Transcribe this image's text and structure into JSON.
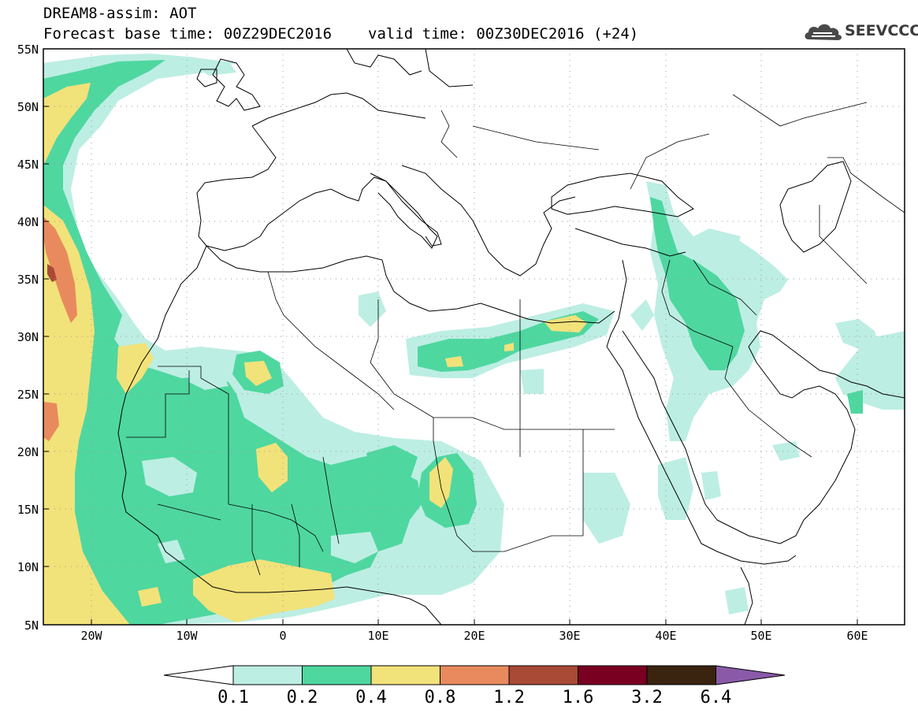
{
  "header": {
    "line1": "DREAM8-assim: AOT",
    "base_time": "Forecast base time: 00Z29DEC2016",
    "valid_time": "valid time: 00Z30DEC2016 (+24)"
  },
  "logo": {
    "text": "SEEVCCC",
    "icon": "cloud-icon"
  },
  "axes": {
    "y_ticks": [
      "55N",
      "50N",
      "45N",
      "40N",
      "35N",
      "30N",
      "25N",
      "20N",
      "15N",
      "10N",
      "5N"
    ],
    "x_ticks": [
      "20W",
      "10W",
      "0",
      "10E",
      "20E",
      "30E",
      "40E",
      "50E",
      "60E"
    ]
  },
  "colorbar": {
    "labels": [
      "0.1",
      "0.2",
      "0.4",
      "0.8",
      "1.2",
      "1.6",
      "3.2",
      "6.4"
    ],
    "colors": [
      "#ffffff",
      "#bdeee3",
      "#4fd7a0",
      "#f2e27a",
      "#e88a5e",
      "#a84a36",
      "#7a0022",
      "#3a2410",
      "#8a5aa8"
    ]
  },
  "fields": {
    "colors": {
      "c1": "#bdeee3",
      "c2": "#4fd7a0",
      "c3": "#f2e27a",
      "c4": "#e88a5e",
      "c5": "#a84a36"
    }
  }
}
